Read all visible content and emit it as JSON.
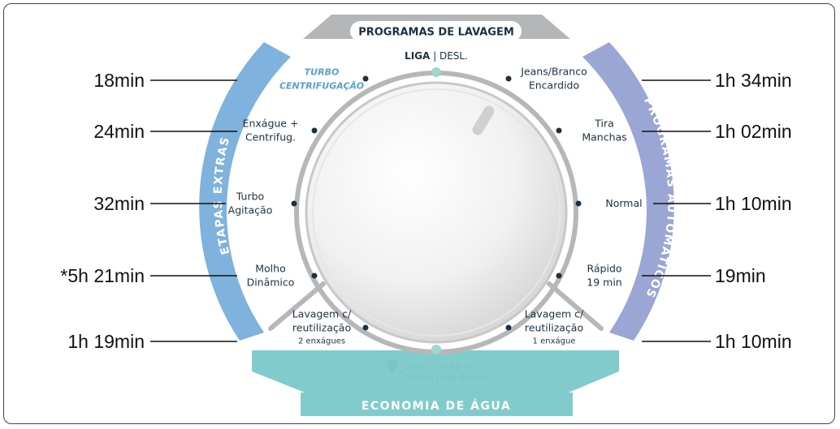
{
  "header": {
    "title": "PROGRAMAS DE LAVAGEM"
  },
  "power": {
    "on": "LIGA",
    "off": "DESL."
  },
  "bands": {
    "left": "ETAPAS EXTRAS",
    "right": "PROGRAMAS AUTOMÁTICOS",
    "bottom": "ECONOMIA DE ÁGUA"
  },
  "colors": {
    "left_band": "#7fb2dc",
    "right_band": "#9aa6d4",
    "bottom_band": "#82cbcd",
    "top_band": "#b4b6b8",
    "dot": "#1c3140"
  },
  "programs_left": [
    {
      "lines": [
        "TURBO",
        "CENTRIFUGAÇÃO"
      ],
      "duration": "18min",
      "style": "turbo"
    },
    {
      "lines": [
        "Enxágue +",
        "Centrifug."
      ],
      "duration": "24min"
    },
    {
      "lines": [
        "Turbo",
        "Agitação"
      ],
      "duration": "32min"
    },
    {
      "lines": [
        "Molho",
        "Dinâmico"
      ],
      "duration": "*5h 21min"
    },
    {
      "lines": [
        "Lavagem c/",
        "reutilização"
      ],
      "small": "2 enxágues",
      "duration": "1h 19min"
    }
  ],
  "programs_right": [
    {
      "lines": [
        "Jeans/Branco",
        "Encardido"
      ],
      "duration": "1h 34min"
    },
    {
      "lines": [
        "Tira",
        "Manchas"
      ],
      "duration": "1h 02min"
    },
    {
      "lines": [
        "Normal"
      ],
      "duration": "1h 10min"
    },
    {
      "lines": [
        "Rápido",
        "19 min"
      ],
      "duration": "19min"
    },
    {
      "lines": [
        "Lavagem c/",
        "reutilização"
      ],
      "small": "1 enxágue",
      "duration": "1h 10min"
    }
  ],
  "hint": {
    "icon": "lightbulb-icon",
    "lines": [
      "abra e feche a",
      "tampa para drenar"
    ]
  }
}
